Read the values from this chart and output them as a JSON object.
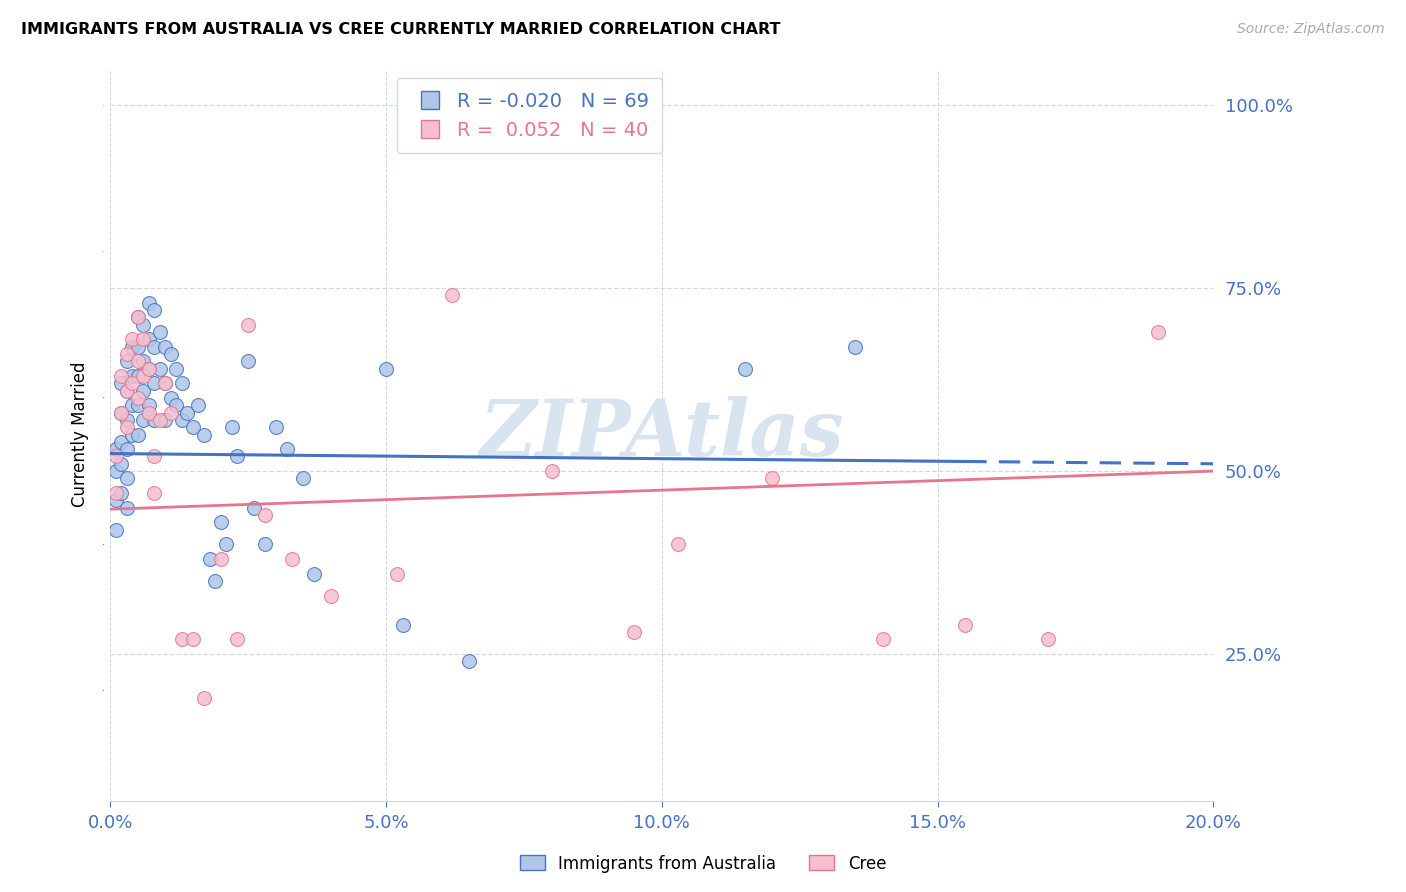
{
  "title": "IMMIGRANTS FROM AUSTRALIA VS CREE CURRENTLY MARRIED CORRELATION CHART",
  "source_text": "Source: ZipAtlas.com",
  "ylabel": "Currently Married",
  "R_blue": -0.02,
  "N_blue": 69,
  "R_pink": 0.052,
  "N_pink": 40,
  "legend_label_blue": "Immigrants from Australia",
  "legend_label_pink": "Cree",
  "xlim": [
    0.0,
    0.2
  ],
  "ylim": [
    0.05,
    1.05
  ],
  "yticks": [
    0.25,
    0.5,
    0.75,
    1.0
  ],
  "xtick_positions": [
    0.0,
    0.05,
    0.1,
    0.15,
    0.2
  ],
  "xtick_labels": [
    "0.0%",
    "5.0%",
    "10.0%",
    "15.0%",
    "20.0%"
  ],
  "ytick_labels": [
    "25.0%",
    "50.0%",
    "75.0%",
    "100.0%"
  ],
  "blue_scatter_x": [
    0.001,
    0.001,
    0.001,
    0.001,
    0.002,
    0.002,
    0.002,
    0.002,
    0.002,
    0.003,
    0.003,
    0.003,
    0.003,
    0.003,
    0.003,
    0.004,
    0.004,
    0.004,
    0.004,
    0.005,
    0.005,
    0.005,
    0.005,
    0.005,
    0.006,
    0.006,
    0.006,
    0.006,
    0.007,
    0.007,
    0.007,
    0.007,
    0.008,
    0.008,
    0.008,
    0.008,
    0.009,
    0.009,
    0.01,
    0.01,
    0.01,
    0.011,
    0.011,
    0.012,
    0.012,
    0.013,
    0.013,
    0.014,
    0.015,
    0.016,
    0.017,
    0.018,
    0.019,
    0.02,
    0.021,
    0.022,
    0.023,
    0.025,
    0.026,
    0.028,
    0.03,
    0.032,
    0.035,
    0.037,
    0.05,
    0.053,
    0.065,
    0.115,
    0.135
  ],
  "blue_scatter_y": [
    0.53,
    0.5,
    0.46,
    0.42,
    0.62,
    0.58,
    0.54,
    0.51,
    0.47,
    0.65,
    0.61,
    0.57,
    0.53,
    0.49,
    0.45,
    0.67,
    0.63,
    0.59,
    0.55,
    0.71,
    0.67,
    0.63,
    0.59,
    0.55,
    0.7,
    0.65,
    0.61,
    0.57,
    0.73,
    0.68,
    0.64,
    0.59,
    0.72,
    0.67,
    0.62,
    0.57,
    0.69,
    0.64,
    0.67,
    0.62,
    0.57,
    0.66,
    0.6,
    0.64,
    0.59,
    0.62,
    0.57,
    0.58,
    0.56,
    0.59,
    0.55,
    0.38,
    0.35,
    0.43,
    0.4,
    0.56,
    0.52,
    0.65,
    0.45,
    0.4,
    0.56,
    0.53,
    0.49,
    0.36,
    0.64,
    0.29,
    0.24,
    0.64,
    0.67
  ],
  "pink_scatter_x": [
    0.001,
    0.001,
    0.002,
    0.002,
    0.003,
    0.003,
    0.003,
    0.004,
    0.004,
    0.005,
    0.005,
    0.005,
    0.006,
    0.006,
    0.007,
    0.007,
    0.008,
    0.008,
    0.009,
    0.01,
    0.011,
    0.013,
    0.015,
    0.017,
    0.02,
    0.023,
    0.025,
    0.028,
    0.033,
    0.04,
    0.052,
    0.062,
    0.08,
    0.095,
    0.103,
    0.12,
    0.14,
    0.155,
    0.17,
    0.19
  ],
  "pink_scatter_y": [
    0.52,
    0.47,
    0.63,
    0.58,
    0.66,
    0.61,
    0.56,
    0.68,
    0.62,
    0.71,
    0.65,
    0.6,
    0.68,
    0.63,
    0.64,
    0.58,
    0.52,
    0.47,
    0.57,
    0.62,
    0.58,
    0.27,
    0.27,
    0.19,
    0.38,
    0.27,
    0.7,
    0.44,
    0.38,
    0.33,
    0.36,
    0.74,
    0.5,
    0.28,
    0.4,
    0.49,
    0.27,
    0.29,
    0.27,
    0.69
  ],
  "blue_color": "#aec6e8",
  "pink_color": "#f5bfce",
  "blue_edge_color": "#4472c4",
  "pink_edge_color": "#e8758a",
  "blue_line_color": "#4472c4",
  "pink_line_color": "#e8758a",
  "axis_label_color": "#4472c4",
  "grid_color": "#d0d8e8",
  "title_color": "#000000",
  "source_color": "#aaaaaa",
  "watermark_color": "#d8e4f0",
  "watermark_text": "ZIPAtlas",
  "marker_size": 100,
  "blue_trendline_y_at_0": 0.524,
  "blue_trendline_y_at_20pct": 0.51,
  "pink_trendline_y_at_0": 0.448,
  "pink_trendline_y_at_20pct": 0.5
}
